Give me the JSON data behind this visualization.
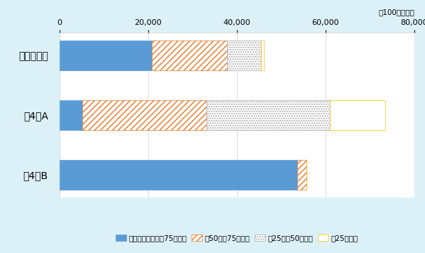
{
  "categories": [
    "第4弾B",
    "第4弾A",
    "第１～３弾"
  ],
  "series": {
    "75plus": [
      53600,
      5200,
      20800
    ],
    "50to75": [
      2100,
      27900,
      17000
    ],
    "25to50": [
      50,
      27900,
      7700
    ],
    "under25": [
      4,
      12500,
      600
    ]
  },
  "colors": {
    "75plus_face": "#5B9BD5",
    "75plus_edge": "#5B9BD5",
    "50to75_face": "#FFFFFF",
    "50to75_edge": "#E87722",
    "25to50_face": "#FFFFFF",
    "25to50_edge": "#AAAAAA",
    "under25_face": "#FFFFFF",
    "under25_edge": "#FFC000"
  },
  "legend_labels": [
    "中国の輸入シェア75％以上",
    "同50％～75％未満",
    "同25％～50％未満",
    "同25％未満"
  ],
  "unit_label": "（100万ドル）",
  "xlim": [
    0,
    80000
  ],
  "xticks": [
    0,
    20000,
    40000,
    60000,
    80000
  ],
  "xtick_labels": [
    "0",
    "20,000",
    "40,000",
    "60,000",
    "80,000"
  ],
  "background_color": "#DCF0F8",
  "plot_bg_color": "#FFFFFF",
  "bar_height": 0.5
}
